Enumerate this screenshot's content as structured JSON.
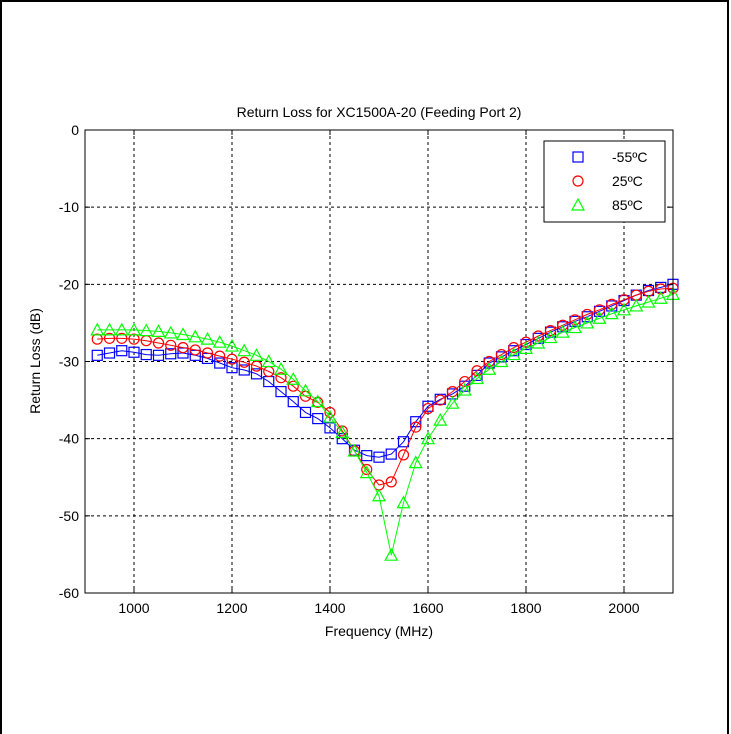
{
  "chart_data": {
    "type": "line",
    "title": "Return Loss for XC1500A-20 (Feeding Port 2)",
    "xlabel": "Frequency (MHz)",
    "ylabel": "Return Loss (dB)",
    "xlim": [
      900,
      2100
    ],
    "ylim": [
      -60,
      0
    ],
    "xticks": [
      1000,
      1200,
      1400,
      1600,
      1800,
      2000
    ],
    "yticks": [
      0,
      -10,
      -20,
      -30,
      -40,
      -50,
      -60
    ],
    "grid": true,
    "legend_position": "top-right",
    "x": [
      925,
      950,
      975,
      1000,
      1025,
      1050,
      1075,
      1100,
      1125,
      1150,
      1175,
      1200,
      1225,
      1250,
      1275,
      1300,
      1325,
      1350,
      1375,
      1400,
      1425,
      1450,
      1475,
      1500,
      1525,
      1550,
      1575,
      1600,
      1625,
      1650,
      1675,
      1700,
      1725,
      1750,
      1775,
      1800,
      1825,
      1850,
      1875,
      1900,
      1925,
      1950,
      1975,
      2000,
      2025,
      2050,
      2075,
      2100
    ],
    "series": [
      {
        "name": "-55ºC",
        "color": "#0000ff",
        "marker": "square",
        "values": [
          -29.2,
          -28.9,
          -28.6,
          -28.8,
          -29.1,
          -29.2,
          -29.0,
          -28.9,
          -29.2,
          -29.6,
          -30.2,
          -30.8,
          -31.1,
          -31.6,
          -32.6,
          -33.9,
          -35.2,
          -36.6,
          -37.4,
          -38.6,
          -40.0,
          -41.5,
          -42.2,
          -42.4,
          -42.0,
          -40.4,
          -37.8,
          -35.8,
          -34.9,
          -34.2,
          -33.2,
          -31.8,
          -30.2,
          -29.4,
          -28.6,
          -27.8,
          -27.0,
          -26.2,
          -25.5,
          -24.8,
          -24.2,
          -23.5,
          -22.8,
          -22.1,
          -21.4,
          -20.8,
          -20.4,
          -20.0
        ]
      },
      {
        "name": "25ºC",
        "color": "#ff0000",
        "marker": "circle",
        "values": [
          -27.1,
          -27.0,
          -27.0,
          -27.1,
          -27.3,
          -27.6,
          -27.9,
          -28.2,
          -28.5,
          -28.9,
          -29.3,
          -29.7,
          -30.1,
          -30.6,
          -31.3,
          -32.1,
          -33.2,
          -34.5,
          -35.3,
          -36.6,
          -39.0,
          -41.6,
          -44.0,
          -46.0,
          -45.6,
          -42.1,
          -38.5,
          -36.1,
          -35.0,
          -33.9,
          -32.6,
          -31.2,
          -30.0,
          -29.1,
          -28.2,
          -27.5,
          -26.7,
          -26.0,
          -25.3,
          -24.6,
          -23.9,
          -23.3,
          -22.6,
          -22.0,
          -21.4,
          -20.9,
          -20.6,
          -20.5
        ]
      },
      {
        "name": "85ºC",
        "color": "#00ff00",
        "marker": "triangle",
        "values": [
          -25.9,
          -25.9,
          -25.9,
          -25.9,
          -26.0,
          -26.1,
          -26.3,
          -26.5,
          -26.8,
          -27.1,
          -27.5,
          -28.0,
          -28.6,
          -29.2,
          -30.0,
          -31.0,
          -32.3,
          -33.8,
          -35.2,
          -37.2,
          -39.2,
          -41.6,
          -44.4,
          -47.4,
          -55.1,
          -48.3,
          -43.1,
          -40.0,
          -37.6,
          -35.4,
          -33.7,
          -32.2,
          -31.0,
          -30.0,
          -29.1,
          -28.3,
          -27.6,
          -26.9,
          -26.2,
          -25.6,
          -25.0,
          -24.4,
          -23.8,
          -23.3,
          -22.8,
          -22.3,
          -21.8,
          -21.3
        ]
      }
    ]
  }
}
